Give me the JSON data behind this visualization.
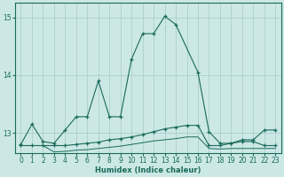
{
  "xlabel": "Humidex (Indice chaleur)",
  "bg_color": "#cce8e5",
  "grid_color": "#aacfcc",
  "line_color": "#1a6b5a",
  "xlim": [
    -0.5,
    23.5
  ],
  "ylim": [
    12.65,
    15.25
  ],
  "yticks": [
    13,
    14,
    15
  ],
  "xticks": [
    0,
    1,
    2,
    3,
    4,
    5,
    6,
    7,
    8,
    9,
    10,
    11,
    12,
    13,
    14,
    15,
    16,
    17,
    18,
    19,
    20,
    21,
    22,
    23
  ],
  "line1_x": [
    0,
    1,
    2,
    3,
    4,
    5,
    6,
    7,
    8,
    9,
    10,
    11,
    12,
    13,
    14,
    16,
    17,
    18,
    19,
    20,
    21,
    22,
    23
  ],
  "line1_y": [
    12.8,
    13.15,
    12.85,
    12.82,
    13.05,
    13.28,
    13.28,
    13.9,
    13.28,
    13.28,
    14.28,
    14.72,
    14.72,
    15.02,
    14.88,
    14.05,
    13.02,
    12.82,
    12.82,
    12.88,
    12.88,
    13.05,
    13.05
  ],
  "line2_x": [
    0,
    1,
    2,
    3,
    4,
    5,
    6,
    7,
    8,
    9,
    10,
    11,
    12,
    13,
    14,
    15,
    16,
    17,
    18,
    19,
    20,
    21,
    22,
    23
  ],
  "line2_y": [
    12.78,
    12.78,
    12.78,
    12.78,
    12.78,
    12.8,
    12.82,
    12.84,
    12.88,
    12.9,
    12.93,
    12.97,
    13.02,
    13.07,
    13.1,
    13.13,
    13.13,
    12.78,
    12.78,
    12.82,
    12.85,
    12.85,
    12.78,
    12.78
  ],
  "line3_x": [
    0,
    1,
    2,
    3,
    4,
    5,
    6,
    7,
    8,
    9,
    10,
    11,
    12,
    13,
    14,
    15,
    16,
    17,
    18,
    19,
    20,
    21,
    22,
    23
  ],
  "line3_y": [
    12.78,
    12.78,
    12.78,
    12.67,
    12.68,
    12.7,
    12.71,
    12.73,
    12.75,
    12.77,
    12.8,
    12.83,
    12.86,
    12.88,
    12.9,
    12.93,
    12.93,
    12.73,
    12.72,
    12.73,
    12.73,
    12.73,
    12.73,
    12.73
  ]
}
